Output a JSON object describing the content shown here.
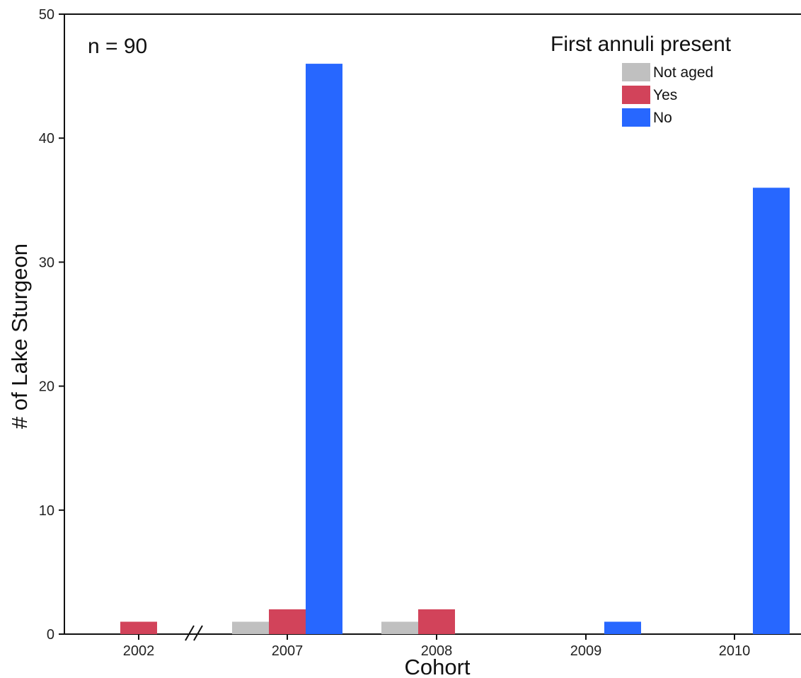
{
  "chart_data": {
    "type": "bar",
    "title": "",
    "annotation": "n = 90",
    "xlabel": "Cohort",
    "ylabel": "# of Lake Sturgeon",
    "categories": [
      "2002",
      "2007",
      "2008",
      "2009",
      "2010"
    ],
    "axis_break_between": [
      "2002",
      "2007"
    ],
    "ylim": [
      0,
      50
    ],
    "yticks": [
      0,
      10,
      20,
      30,
      40,
      50
    ],
    "legend": {
      "title": "First annuli present",
      "placement": "top-right"
    },
    "series": [
      {
        "name": "Not aged",
        "color": "#c0c0c0",
        "values": [
          0,
          1,
          1,
          0,
          0
        ]
      },
      {
        "name": "Yes",
        "color": "#d2435a",
        "values": [
          1,
          2,
          2,
          0,
          0
        ]
      },
      {
        "name": "No",
        "color": "#2767ff",
        "values": [
          0,
          46,
          0,
          1,
          36
        ]
      }
    ]
  }
}
